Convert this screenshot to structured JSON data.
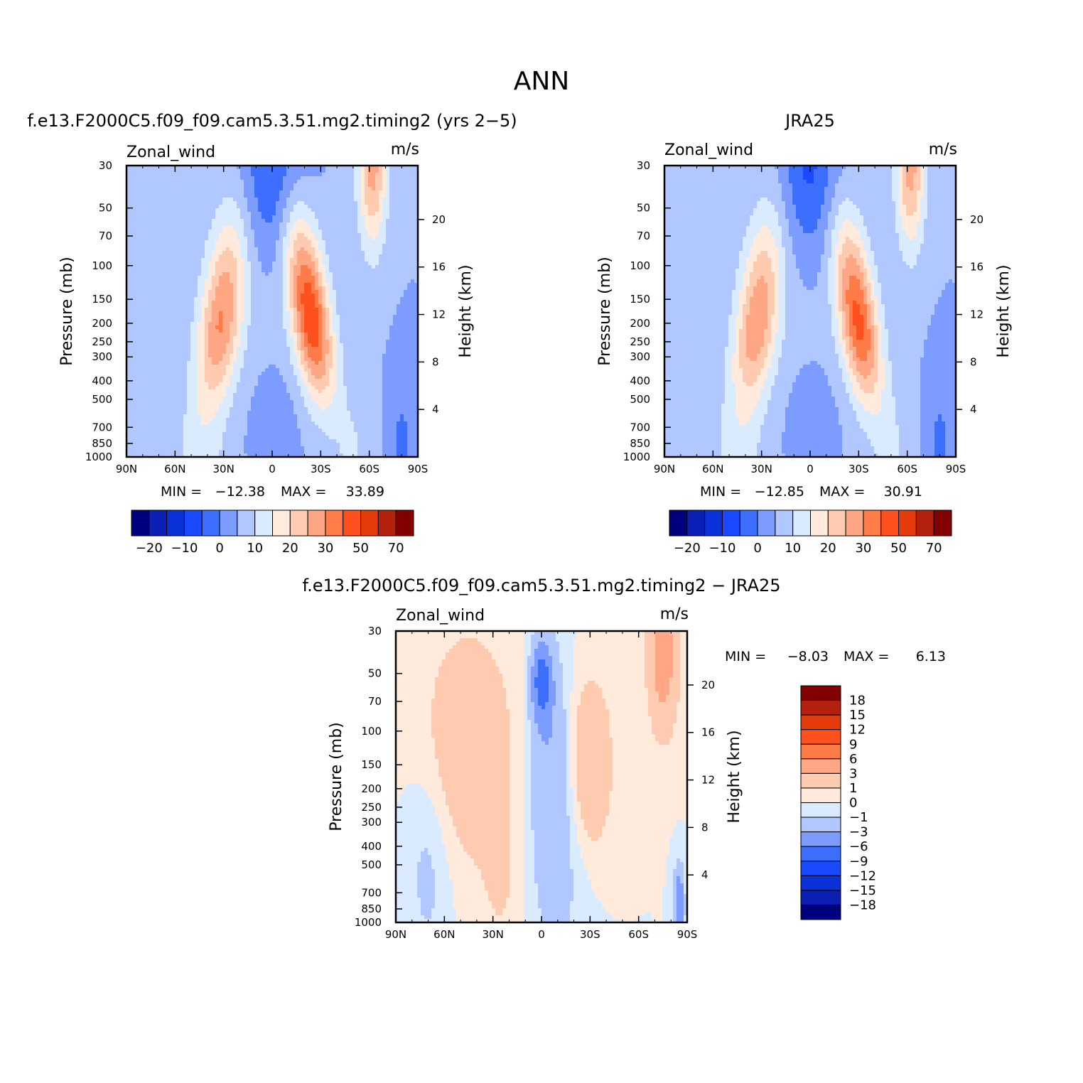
{
  "figure": {
    "title": "ANN",
    "stats_min_label": "MIN =",
    "stats_max_label": "MAX ="
  },
  "palette": {
    "abs": [
      "#00007f",
      "#0a1fb4",
      "#0a32d8",
      "#1a4aff",
      "#3d6fff",
      "#7c9dff",
      "#b0c8ff",
      "#daeaff",
      "#ffeadb",
      "#ffcbb0",
      "#ffa685",
      "#ff7b47",
      "#ff511e",
      "#e53a0a",
      "#b3200b",
      "#820000"
    ],
    "diff": [
      "#00007f",
      "#0a1fb4",
      "#0a32d8",
      "#1a4aff",
      "#3d6fff",
      "#7c9dff",
      "#b0c8ff",
      "#daeaff",
      "#ffeadb",
      "#ffcbb0",
      "#ffa685",
      "#ff7b47",
      "#ff511e",
      "#e53a0a",
      "#b3200b",
      "#820000"
    ]
  },
  "chart_data": [
    {
      "type": "heatmap",
      "title": "f.e13.F2000C5.f09_f09.cam5.3.51.mg2.timing2 (yrs 2−5)",
      "left_label": "Zonal_wind",
      "units": "m/s",
      "xlabel": "",
      "ylabel": "Pressure (mb)",
      "y2label": "Height (km)",
      "x_ticks": [
        "90N",
        "60N",
        "30N",
        "0",
        "30S",
        "60S",
        "90S"
      ],
      "x_values": [
        90,
        60,
        30,
        0,
        -30,
        -60,
        -90
      ],
      "y_ticks": [
        "30",
        "50",
        "70",
        "100",
        "150",
        "200",
        "250",
        "300",
        "400",
        "500",
        "700",
        "850",
        "1000"
      ],
      "y_values": [
        30,
        50,
        70,
        100,
        150,
        200,
        250,
        300,
        400,
        500,
        700,
        850,
        1000
      ],
      "y2_ticks": [
        "20",
        "16",
        "12",
        "8",
        "4"
      ],
      "y2_values": [
        20,
        16,
        12,
        8,
        4
      ],
      "ylim": [
        1000,
        30
      ],
      "y_scale": "log",
      "min": "−12.38",
      "max": "33.89",
      "colorbar_orientation": "horizontal",
      "colorbar_labels": [
        "−20",
        "−10",
        "0",
        "10",
        "20",
        "30",
        "50",
        "70"
      ],
      "levels": [
        -25,
        -20,
        -15,
        -10,
        -5,
        0,
        5,
        10,
        15,
        20,
        25,
        30,
        40,
        50,
        60,
        70
      ],
      "jets": [
        {
          "name": "nh_subtropical_jet",
          "lat": 32,
          "p": 200,
          "peak": 24
        },
        {
          "name": "sh_subtropical_jet",
          "lat": -24,
          "p": 190,
          "peak": 33.89
        }
      ]
    },
    {
      "type": "heatmap",
      "title": "JRA25",
      "left_label": "Zonal_wind",
      "units": "m/s",
      "xlabel": "",
      "ylabel": "Pressure (mb)",
      "y2label": "Height (km)",
      "x_ticks": [
        "90N",
        "60N",
        "30N",
        "0",
        "30S",
        "60S",
        "90S"
      ],
      "x_values": [
        90,
        60,
        30,
        0,
        -30,
        -60,
        -90
      ],
      "y_ticks": [
        "30",
        "50",
        "70",
        "100",
        "150",
        "200",
        "250",
        "300",
        "400",
        "500",
        "700",
        "850",
        "1000"
      ],
      "y_values": [
        30,
        50,
        70,
        100,
        150,
        200,
        250,
        300,
        400,
        500,
        700,
        850,
        1000
      ],
      "y2_ticks": [
        "20",
        "16",
        "12",
        "8",
        "4"
      ],
      "y2_values": [
        20,
        16,
        12,
        8,
        4
      ],
      "ylim": [
        1000,
        30
      ],
      "y_scale": "log",
      "min": "−12.85",
      "max": "30.91",
      "colorbar_orientation": "horizontal",
      "colorbar_labels": [
        "−20",
        "−10",
        "0",
        "10",
        "20",
        "30",
        "50",
        "70"
      ],
      "levels": [
        -25,
        -20,
        -15,
        -10,
        -5,
        0,
        5,
        10,
        15,
        20,
        25,
        30,
        40,
        50,
        60,
        70
      ],
      "jets": [
        {
          "name": "nh_subtropical_jet",
          "lat": 33,
          "p": 200,
          "peak": 23
        },
        {
          "name": "sh_subtropical_jet",
          "lat": -30,
          "p": 200,
          "peak": 30.91
        }
      ]
    },
    {
      "type": "heatmap",
      "title": "f.e13.F2000C5.f09_f09.cam5.3.51.mg2.timing2 − JRA25",
      "left_label": "Zonal_wind",
      "units": "m/s",
      "xlabel": "",
      "ylabel": "Pressure (mb)",
      "y2label": "Height (km)",
      "x_ticks": [
        "90N",
        "60N",
        "30N",
        "0",
        "30S",
        "60S",
        "90S"
      ],
      "x_values": [
        90,
        60,
        30,
        0,
        -30,
        -60,
        -90
      ],
      "y_ticks": [
        "30",
        "50",
        "70",
        "100",
        "150",
        "200",
        "250",
        "300",
        "400",
        "500",
        "700",
        "850",
        "1000"
      ],
      "y_values": [
        30,
        50,
        70,
        100,
        150,
        200,
        250,
        300,
        400,
        500,
        700,
        850,
        1000
      ],
      "y2_ticks": [
        "20",
        "16",
        "12",
        "8",
        "4"
      ],
      "y2_values": [
        20,
        16,
        12,
        8,
        4
      ],
      "ylim": [
        1000,
        30
      ],
      "y_scale": "log",
      "min": "−8.03",
      "max": "6.13",
      "colorbar_orientation": "vertical",
      "colorbar_labels": [
        "18",
        "15",
        "12",
        "9",
        "6",
        "3",
        "1",
        "0",
        "−1",
        "−3",
        "−6",
        "−9",
        "−12",
        "−15",
        "−18"
      ],
      "levels": [
        -18,
        -15,
        -12,
        -9,
        -6,
        -3,
        -1,
        0,
        1,
        3,
        6,
        9,
        12,
        15,
        18
      ]
    }
  ]
}
